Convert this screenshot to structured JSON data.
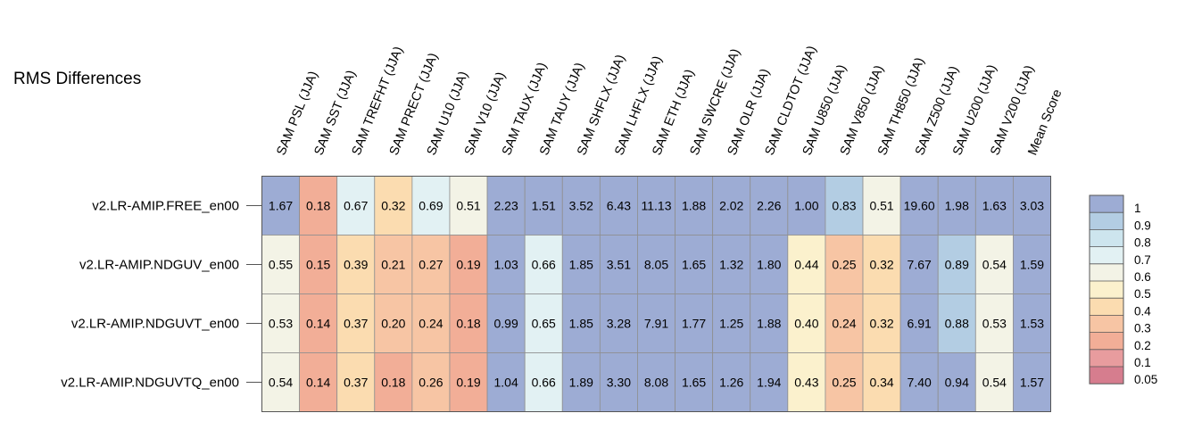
{
  "chart_data": {
    "type": "heatmap",
    "title": "RMS Differences",
    "columns": [
      "SAM PSL (JJA)",
      "SAM SST (JJA)",
      "SAM TREFHT (JJA)",
      "SAM PRECT (JJA)",
      "SAM U10 (JJA)",
      "SAM V10 (JJA)",
      "SAM TAUX (JJA)",
      "SAM TAUY (JJA)",
      "SAM SHFLX (JJA)",
      "SAM LHFLX (JJA)",
      "SAM ETH (JJA)",
      "SAM SWCRE (JJA)",
      "SAM OLR (JJA)",
      "SAM CLDTOT (JJA)",
      "SAM U850 (JJA)",
      "SAM V850 (JJA)",
      "SAM TH850 (JJA)",
      "SAM Z500 (JJA)",
      "SAM U200 (JJA)",
      "SAM V200 (JJA)",
      "Mean Score"
    ],
    "rows": [
      "v2.LR-AMIP.FREE_en00",
      "v2.LR-AMIP.NDGUV_en00",
      "v2.LR-AMIP.NDGUVT_en00",
      "v2.LR-AMIP.NDGUVTQ_en00"
    ],
    "values": [
      [
        "1.67",
        "0.18",
        "0.67",
        "0.32",
        "0.69",
        "0.51",
        "2.23",
        "1.51",
        "3.52",
        "6.43",
        "11.13",
        "1.88",
        "2.02",
        "2.26",
        "1.00",
        "0.83",
        "0.51",
        "19.60",
        "1.98",
        "1.63",
        "3.03"
      ],
      [
        "0.55",
        "0.15",
        "0.39",
        "0.21",
        "0.27",
        "0.19",
        "1.03",
        "0.66",
        "1.85",
        "3.51",
        "8.05",
        "1.65",
        "1.32",
        "1.80",
        "0.44",
        "0.25",
        "0.32",
        "7.67",
        "0.89",
        "0.54",
        "1.59"
      ],
      [
        "0.53",
        "0.14",
        "0.37",
        "0.20",
        "0.24",
        "0.18",
        "0.99",
        "0.65",
        "1.85",
        "3.28",
        "7.91",
        "1.77",
        "1.25",
        "1.88",
        "0.40",
        "0.24",
        "0.32",
        "6.91",
        "0.88",
        "0.53",
        "1.53"
      ],
      [
        "0.54",
        "0.14",
        "0.37",
        "0.18",
        "0.26",
        "0.19",
        "1.04",
        "0.66",
        "1.89",
        "3.30",
        "8.08",
        "1.65",
        "1.26",
        "1.94",
        "0.43",
        "0.25",
        "0.34",
        "7.40",
        "0.94",
        "0.54",
        "1.57"
      ]
    ],
    "colorbar": {
      "boundaries": [
        0.05,
        0.1,
        0.2,
        0.3,
        0.4,
        0.5,
        0.6,
        0.7,
        0.8,
        0.9,
        1
      ],
      "labels": [
        "1",
        "0.9",
        "0.8",
        "0.7",
        "0.6",
        "0.5",
        "0.4",
        "0.3",
        "0.2",
        "0.1",
        "0.05"
      ],
      "colors_low_to_high": [
        "#d67d8e",
        "#e89c9e",
        "#f2ae97",
        "#f7c5a4",
        "#fbdcb0",
        "#fbf1cd",
        "#f3f3e6",
        "#e2f1f3",
        "#cde5ee",
        "#b3cde3",
        "#9dacd4"
      ]
    }
  }
}
